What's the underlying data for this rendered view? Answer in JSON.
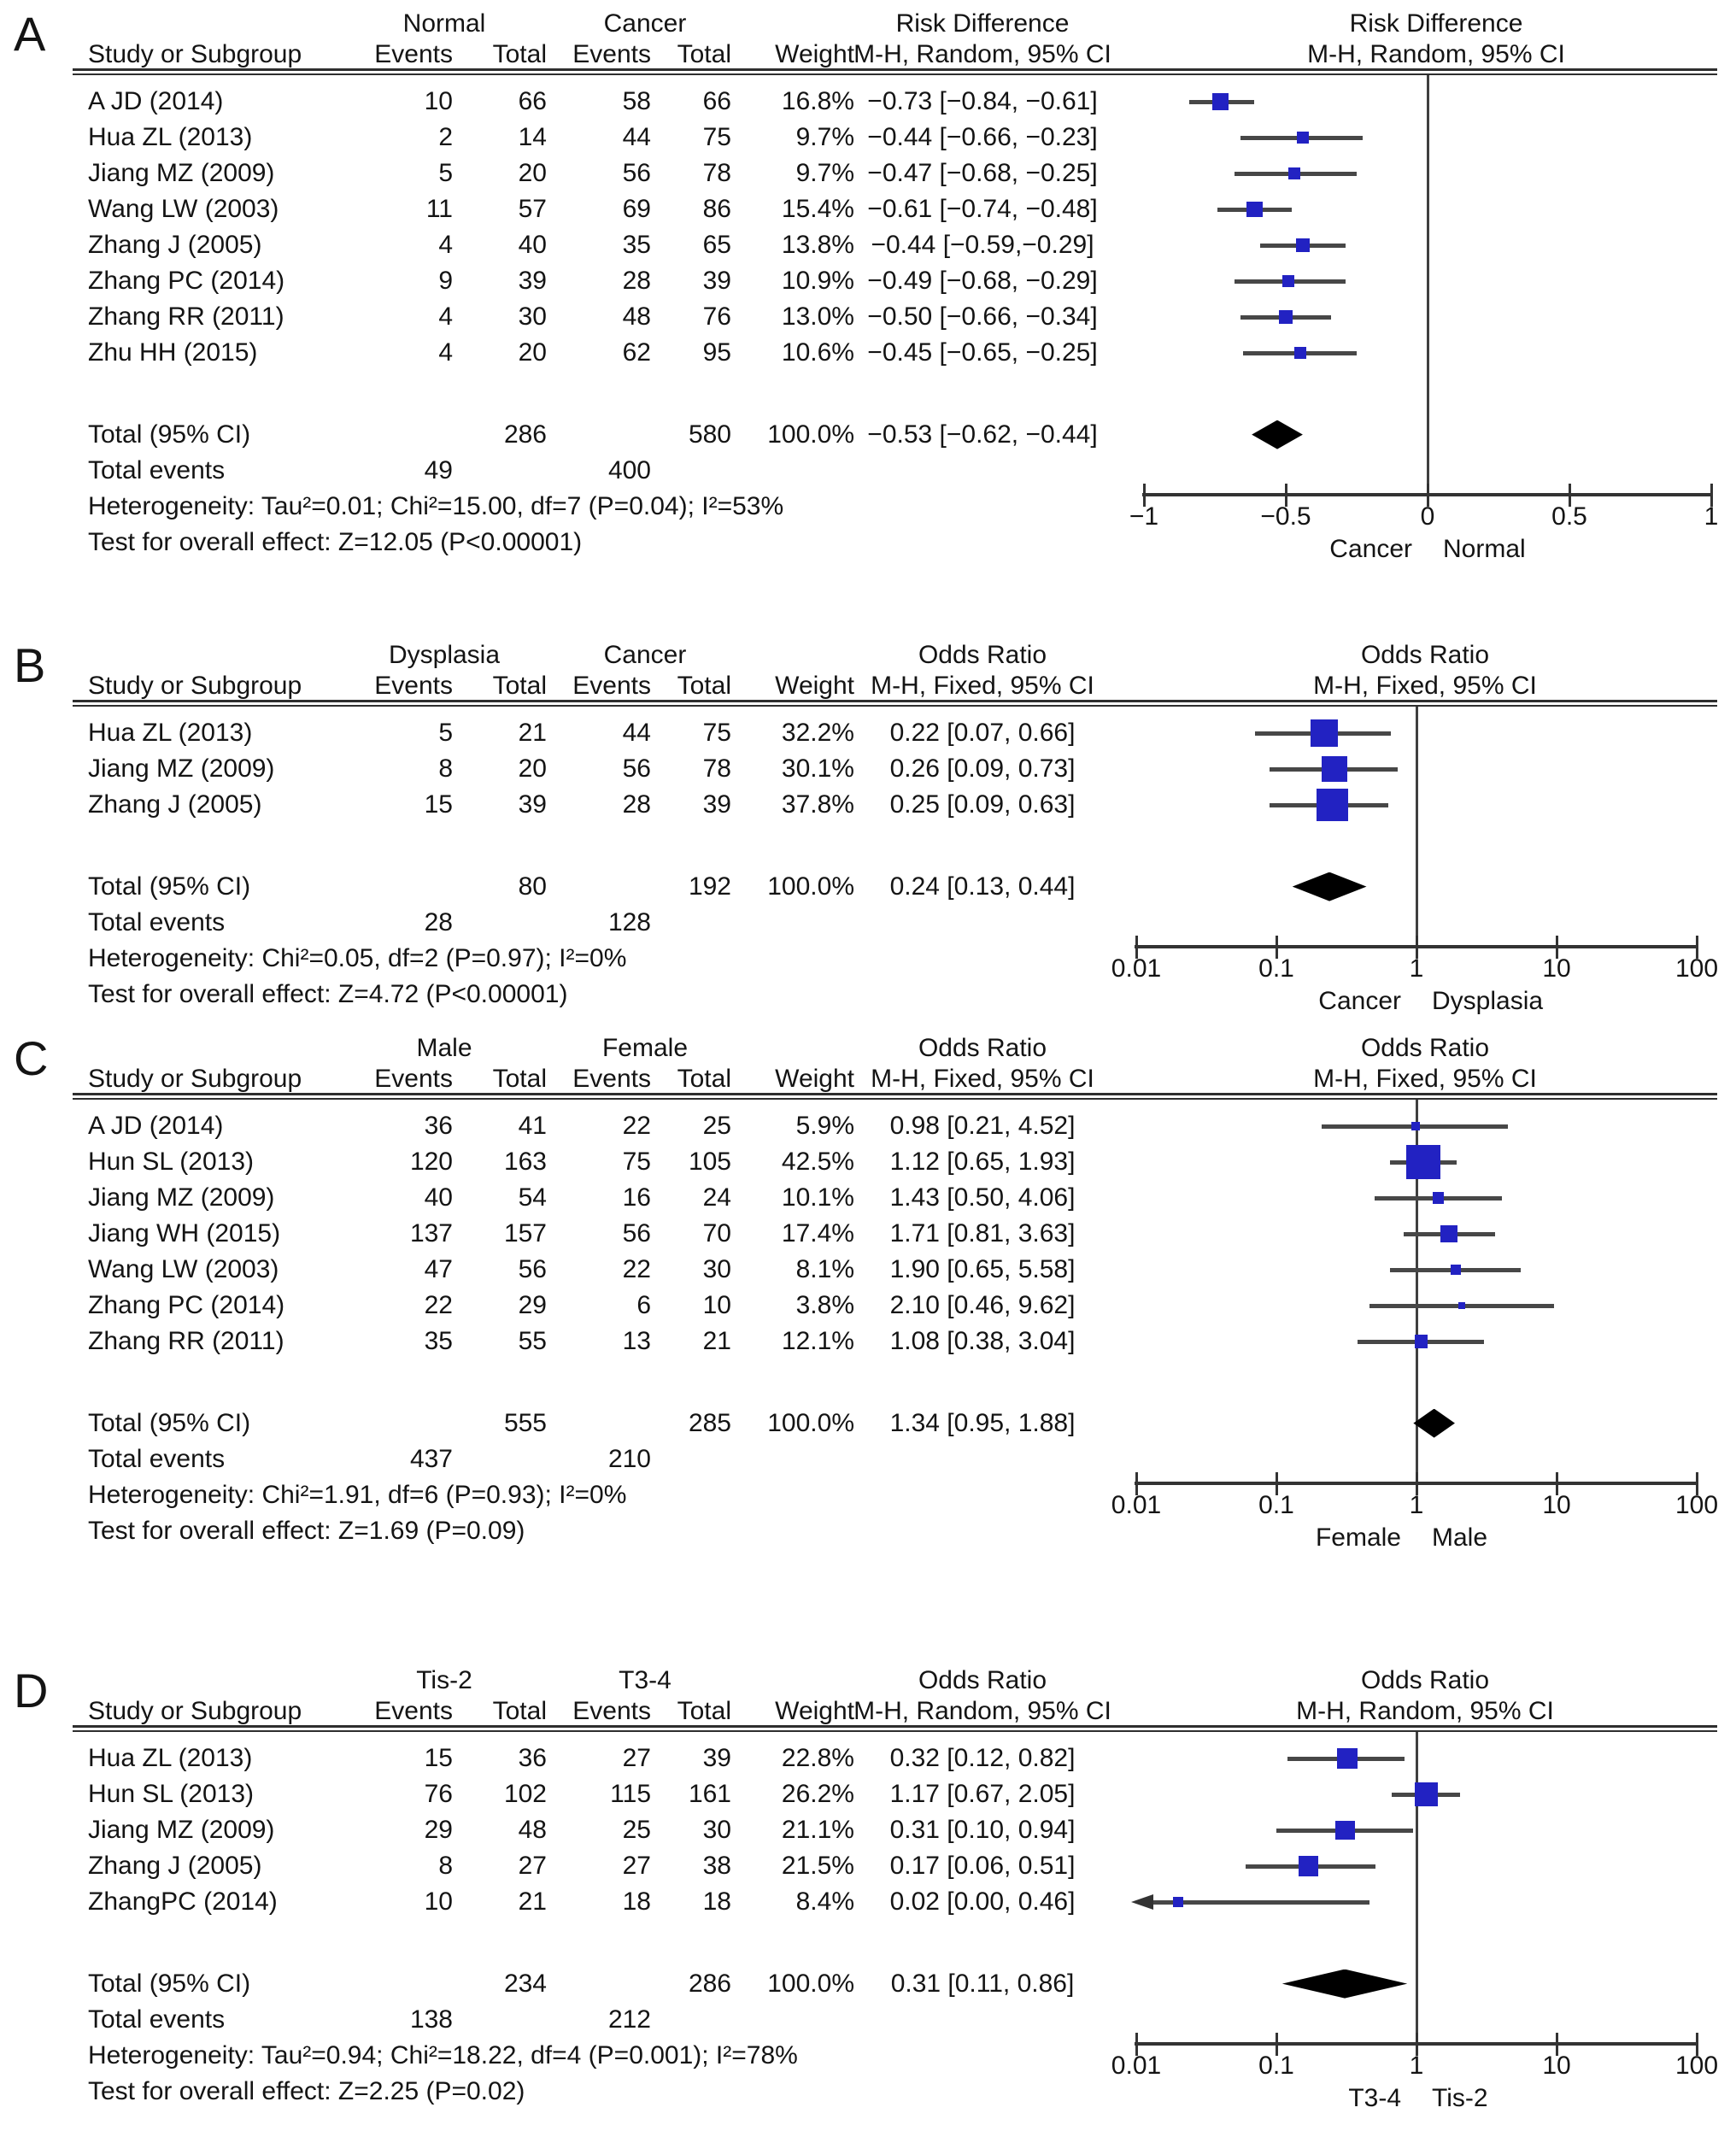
{
  "figure_title": "",
  "chart_data": [
    {
      "type": "forest",
      "panel_label": "A",
      "group1": "Normal",
      "group2": "Cancer",
      "effect_title": "Risk Difference",
      "effect_method": "M-H, Random, 95% CI",
      "col_headers": {
        "study": "Study or Subgroup",
        "events": "Events",
        "total": "Total",
        "weight": "Weight"
      },
      "scale": "linear",
      "axis_ticks": [
        -1,
        -0.5,
        0,
        0.5,
        1
      ],
      "axis_tick_labels": [
        "−1",
        "−0.5",
        "0",
        "0.5",
        "1"
      ],
      "axis_left_label": "Cancer",
      "axis_right_label": "Normal",
      "studies": [
        {
          "study": "A JD (2014)",
          "events1": 10,
          "total1": 66,
          "events2": 58,
          "total2": 66,
          "weight": "16.8%",
          "weight_pct": 16.8,
          "ci_text": "−0.73 [−0.84, −0.61]",
          "est": -0.73,
          "lo": -0.84,
          "hi": -0.61
        },
        {
          "study": "Hua ZL (2013)",
          "events1": 2,
          "total1": 14,
          "events2": 44,
          "total2": 75,
          "weight": "9.7%",
          "weight_pct": 9.7,
          "ci_text": "−0.44 [−0.66, −0.23]",
          "est": -0.44,
          "lo": -0.66,
          "hi": -0.23
        },
        {
          "study": "Jiang MZ (2009)",
          "events1": 5,
          "total1": 20,
          "events2": 56,
          "total2": 78,
          "weight": "9.7%",
          "weight_pct": 9.7,
          "ci_text": "−0.47 [−0.68, −0.25]",
          "est": -0.47,
          "lo": -0.68,
          "hi": -0.25
        },
        {
          "study": "Wang LW (2003)",
          "events1": 11,
          "total1": 57,
          "events2": 69,
          "total2": 86,
          "weight": "15.4%",
          "weight_pct": 15.4,
          "ci_text": "−0.61 [−0.74, −0.48]",
          "est": -0.61,
          "lo": -0.74,
          "hi": -0.48
        },
        {
          "study": "Zhang J (2005)",
          "events1": 4,
          "total1": 40,
          "events2": 35,
          "total2": 65,
          "weight": "13.8%",
          "weight_pct": 13.8,
          "ci_text": "−0.44 [−0.59,−0.29]",
          "est": -0.44,
          "lo": -0.59,
          "hi": -0.29
        },
        {
          "study": "Zhang PC (2014)",
          "events1": 9,
          "total1": 39,
          "events2": 28,
          "total2": 39,
          "weight": "10.9%",
          "weight_pct": 10.9,
          "ci_text": "−0.49 [−0.68, −0.29]",
          "est": -0.49,
          "lo": -0.68,
          "hi": -0.29
        },
        {
          "study": "Zhang RR (2011)",
          "events1": 4,
          "total1": 30,
          "events2": 48,
          "total2": 76,
          "weight": "13.0%",
          "weight_pct": 13.0,
          "ci_text": "−0.50 [−0.66, −0.34]",
          "est": -0.5,
          "lo": -0.66,
          "hi": -0.34
        },
        {
          "study": "Zhu HH (2015)",
          "events1": 4,
          "total1": 20,
          "events2": 62,
          "total2": 95,
          "weight": "10.6%",
          "weight_pct": 10.6,
          "ci_text": "−0.45 [−0.65, −0.25]",
          "est": -0.45,
          "lo": -0.65,
          "hi": -0.25
        }
      ],
      "total_row": {
        "label": "Total (95% CI)",
        "total1": 286,
        "total2": 580,
        "weight": "100.0%",
        "ci_text": "−0.53 [−0.62, −0.44]",
        "est": -0.53,
        "lo": -0.62,
        "hi": -0.44
      },
      "total_events": {
        "label": "Total events",
        "events1": 49,
        "events2": 400
      },
      "heterogeneity": "Heterogeneity: Tau²=0.01; Chi²=15.00, df=7 (P=0.04); I²=53%",
      "overall_effect": "Test for overall effect: Z=12.05 (P<0.00001)"
    },
    {
      "type": "forest",
      "panel_label": "B",
      "group1": "Dysplasia",
      "group2": "Cancer",
      "effect_title": "Odds Ratio",
      "effect_method": "M-H, Fixed, 95% CI",
      "col_headers": {
        "study": "Study or Subgroup",
        "events": "Events",
        "total": "Total",
        "weight": "Weight"
      },
      "scale": "log",
      "axis_ticks": [
        0.01,
        0.1,
        1,
        10,
        100
      ],
      "axis_tick_labels": [
        "0.01",
        "0.1",
        "1",
        "10",
        "100"
      ],
      "axis_left_label": "Cancer",
      "axis_right_label": "Dysplasia",
      "studies": [
        {
          "study": "Hua ZL (2013)",
          "events1": 5,
          "total1": 21,
          "events2": 44,
          "total2": 75,
          "weight": "32.2%",
          "weight_pct": 32.2,
          "ci_text": "0.22 [0.07, 0.66]",
          "est": 0.22,
          "lo": 0.07,
          "hi": 0.66
        },
        {
          "study": "Jiang MZ (2009)",
          "events1": 8,
          "total1": 20,
          "events2": 56,
          "total2": 78,
          "weight": "30.1%",
          "weight_pct": 30.1,
          "ci_text": "0.26 [0.09, 0.73]",
          "est": 0.26,
          "lo": 0.09,
          "hi": 0.73
        },
        {
          "study": "Zhang J (2005)",
          "events1": 15,
          "total1": 39,
          "events2": 28,
          "total2": 39,
          "weight": "37.8%",
          "weight_pct": 37.8,
          "ci_text": "0.25 [0.09, 0.63]",
          "est": 0.25,
          "lo": 0.09,
          "hi": 0.63
        }
      ],
      "total_row": {
        "label": "Total (95% CI)",
        "total1": 80,
        "total2": 192,
        "weight": "100.0%",
        "ci_text": "0.24 [0.13, 0.44]",
        "est": 0.24,
        "lo": 0.13,
        "hi": 0.44
      },
      "total_events": {
        "label": "Total events",
        "events1": 28,
        "events2": 128
      },
      "heterogeneity": "Heterogeneity: Chi²=0.05, df=2 (P=0.97); I²=0%",
      "overall_effect": "Test for overall effect: Z=4.72 (P<0.00001)"
    },
    {
      "type": "forest",
      "panel_label": "C",
      "group1": "Male",
      "group2": "Female",
      "effect_title": "Odds Ratio",
      "effect_method": "M-H, Fixed, 95% CI",
      "col_headers": {
        "study": "Study or Subgroup",
        "events": "Events",
        "total": "Total",
        "weight": "Weight"
      },
      "scale": "log",
      "axis_ticks": [
        0.01,
        0.1,
        1,
        10,
        100
      ],
      "axis_tick_labels": [
        "0.01",
        "0.1",
        "1",
        "10",
        "100"
      ],
      "axis_left_label": "Female",
      "axis_right_label": "Male",
      "studies": [
        {
          "study": "A JD (2014)",
          "events1": 36,
          "total1": 41,
          "events2": 22,
          "total2": 25,
          "weight": "5.9%",
          "weight_pct": 5.9,
          "ci_text": "0.98 [0.21, 4.52]",
          "est": 0.98,
          "lo": 0.21,
          "hi": 4.52
        },
        {
          "study": "Hun SL (2013)",
          "events1": 120,
          "total1": 163,
          "events2": 75,
          "total2": 105,
          "weight": "42.5%",
          "weight_pct": 42.5,
          "ci_text": "1.12 [0.65, 1.93]",
          "est": 1.12,
          "lo": 0.65,
          "hi": 1.93
        },
        {
          "study": "Jiang MZ (2009)",
          "events1": 40,
          "total1": 54,
          "events2": 16,
          "total2": 24,
          "weight": "10.1%",
          "weight_pct": 10.1,
          "ci_text": "1.43 [0.50, 4.06]",
          "est": 1.43,
          "lo": 0.5,
          "hi": 4.06
        },
        {
          "study": "Jiang WH (2015)",
          "events1": 137,
          "total1": 157,
          "events2": 56,
          "total2": 70,
          "weight": "17.4%",
          "weight_pct": 17.4,
          "ci_text": "1.71 [0.81, 3.63]",
          "est": 1.71,
          "lo": 0.81,
          "hi": 3.63
        },
        {
          "study": "Wang LW (2003)",
          "events1": 47,
          "total1": 56,
          "events2": 22,
          "total2": 30,
          "weight": "8.1%",
          "weight_pct": 8.1,
          "ci_text": "1.90 [0.65, 5.58]",
          "est": 1.9,
          "lo": 0.65,
          "hi": 5.58
        },
        {
          "study": "Zhang PC (2014)",
          "events1": 22,
          "total1": 29,
          "events2": 6,
          "total2": 10,
          "weight": "3.8%",
          "weight_pct": 3.8,
          "ci_text": "2.10 [0.46, 9.62]",
          "est": 2.1,
          "lo": 0.46,
          "hi": 9.62
        },
        {
          "study": "Zhang RR (2011)",
          "events1": 35,
          "total1": 55,
          "events2": 13,
          "total2": 21,
          "weight": "12.1%",
          "weight_pct": 12.1,
          "ci_text": "1.08 [0.38, 3.04]",
          "est": 1.08,
          "lo": 0.38,
          "hi": 3.04
        }
      ],
      "total_row": {
        "label": "Total (95% CI)",
        "total1": 555,
        "total2": 285,
        "weight": "100.0%",
        "ci_text": "1.34 [0.95, 1.88]",
        "est": 1.34,
        "lo": 0.95,
        "hi": 1.88
      },
      "total_events": {
        "label": "Total events",
        "events1": 437,
        "events2": 210
      },
      "heterogeneity": "Heterogeneity: Chi²=1.91, df=6 (P=0.93); I²=0%",
      "overall_effect": "Test for overall effect: Z=1.69 (P=0.09)"
    },
    {
      "type": "forest",
      "panel_label": "D",
      "group1": "Tis-2",
      "group2": "T3-4",
      "effect_title": "Odds Ratio",
      "effect_method": "M-H, Random, 95% CI",
      "col_headers": {
        "study": "Study or Subgroup",
        "events": "Events",
        "total": "Total",
        "weight": "Weight"
      },
      "scale": "log",
      "axis_ticks": [
        0.01,
        0.1,
        1,
        10,
        100
      ],
      "axis_tick_labels": [
        "0.01",
        "0.1",
        "1",
        "10",
        "100"
      ],
      "axis_left_label": "T3-4",
      "axis_right_label": "Tis-2",
      "studies": [
        {
          "study": "Hua ZL (2013)",
          "events1": 15,
          "total1": 36,
          "events2": 27,
          "total2": 39,
          "weight": "22.8%",
          "weight_pct": 22.8,
          "ci_text": "0.32 [0.12, 0.82]",
          "est": 0.32,
          "lo": 0.12,
          "hi": 0.82
        },
        {
          "study": "Hun SL (2013)",
          "events1": 76,
          "total1": 102,
          "events2": 115,
          "total2": 161,
          "weight": "26.2%",
          "weight_pct": 26.2,
          "ci_text": "1.17 [0.67, 2.05]",
          "est": 1.17,
          "lo": 0.67,
          "hi": 2.05
        },
        {
          "study": "Jiang MZ (2009)",
          "events1": 29,
          "total1": 48,
          "events2": 25,
          "total2": 30,
          "weight": "21.1%",
          "weight_pct": 21.1,
          "ci_text": "0.31 [0.10, 0.94]",
          "est": 0.31,
          "lo": 0.1,
          "hi": 0.94
        },
        {
          "study": "Zhang J (2005)",
          "events1": 8,
          "total1": 27,
          "events2": 27,
          "total2": 38,
          "weight": "21.5%",
          "weight_pct": 21.5,
          "ci_text": "0.17 [0.06, 0.51]",
          "est": 0.17,
          "lo": 0.06,
          "hi": 0.51
        },
        {
          "study": "ZhangPC (2014)",
          "events1": 10,
          "total1": 21,
          "events2": 18,
          "total2": 18,
          "weight": "8.4%",
          "weight_pct": 8.4,
          "ci_text": "0.02 [0.00, 0.46]",
          "est": 0.02,
          "lo": 0.0,
          "hi": 0.46
        }
      ],
      "total_row": {
        "label": "Total (95% CI)",
        "total1": 234,
        "total2": 286,
        "weight": "100.0%",
        "ci_text": "0.31 [0.11, 0.86]",
        "est": 0.31,
        "lo": 0.11,
        "hi": 0.86
      },
      "total_events": {
        "label": "Total events",
        "events1": 138,
        "events2": 212
      },
      "heterogeneity": "Heterogeneity: Tau²=0.94; Chi²=18.22, df=4 (P=0.001); I²=78%",
      "overall_effect": "Test for overall effect: Z=2.25 (P=0.02)"
    }
  ],
  "colors": {
    "marker_blue": "#2222c2",
    "diamond_black": "#000000",
    "line_gray": "#474747",
    "text": "#141414"
  }
}
